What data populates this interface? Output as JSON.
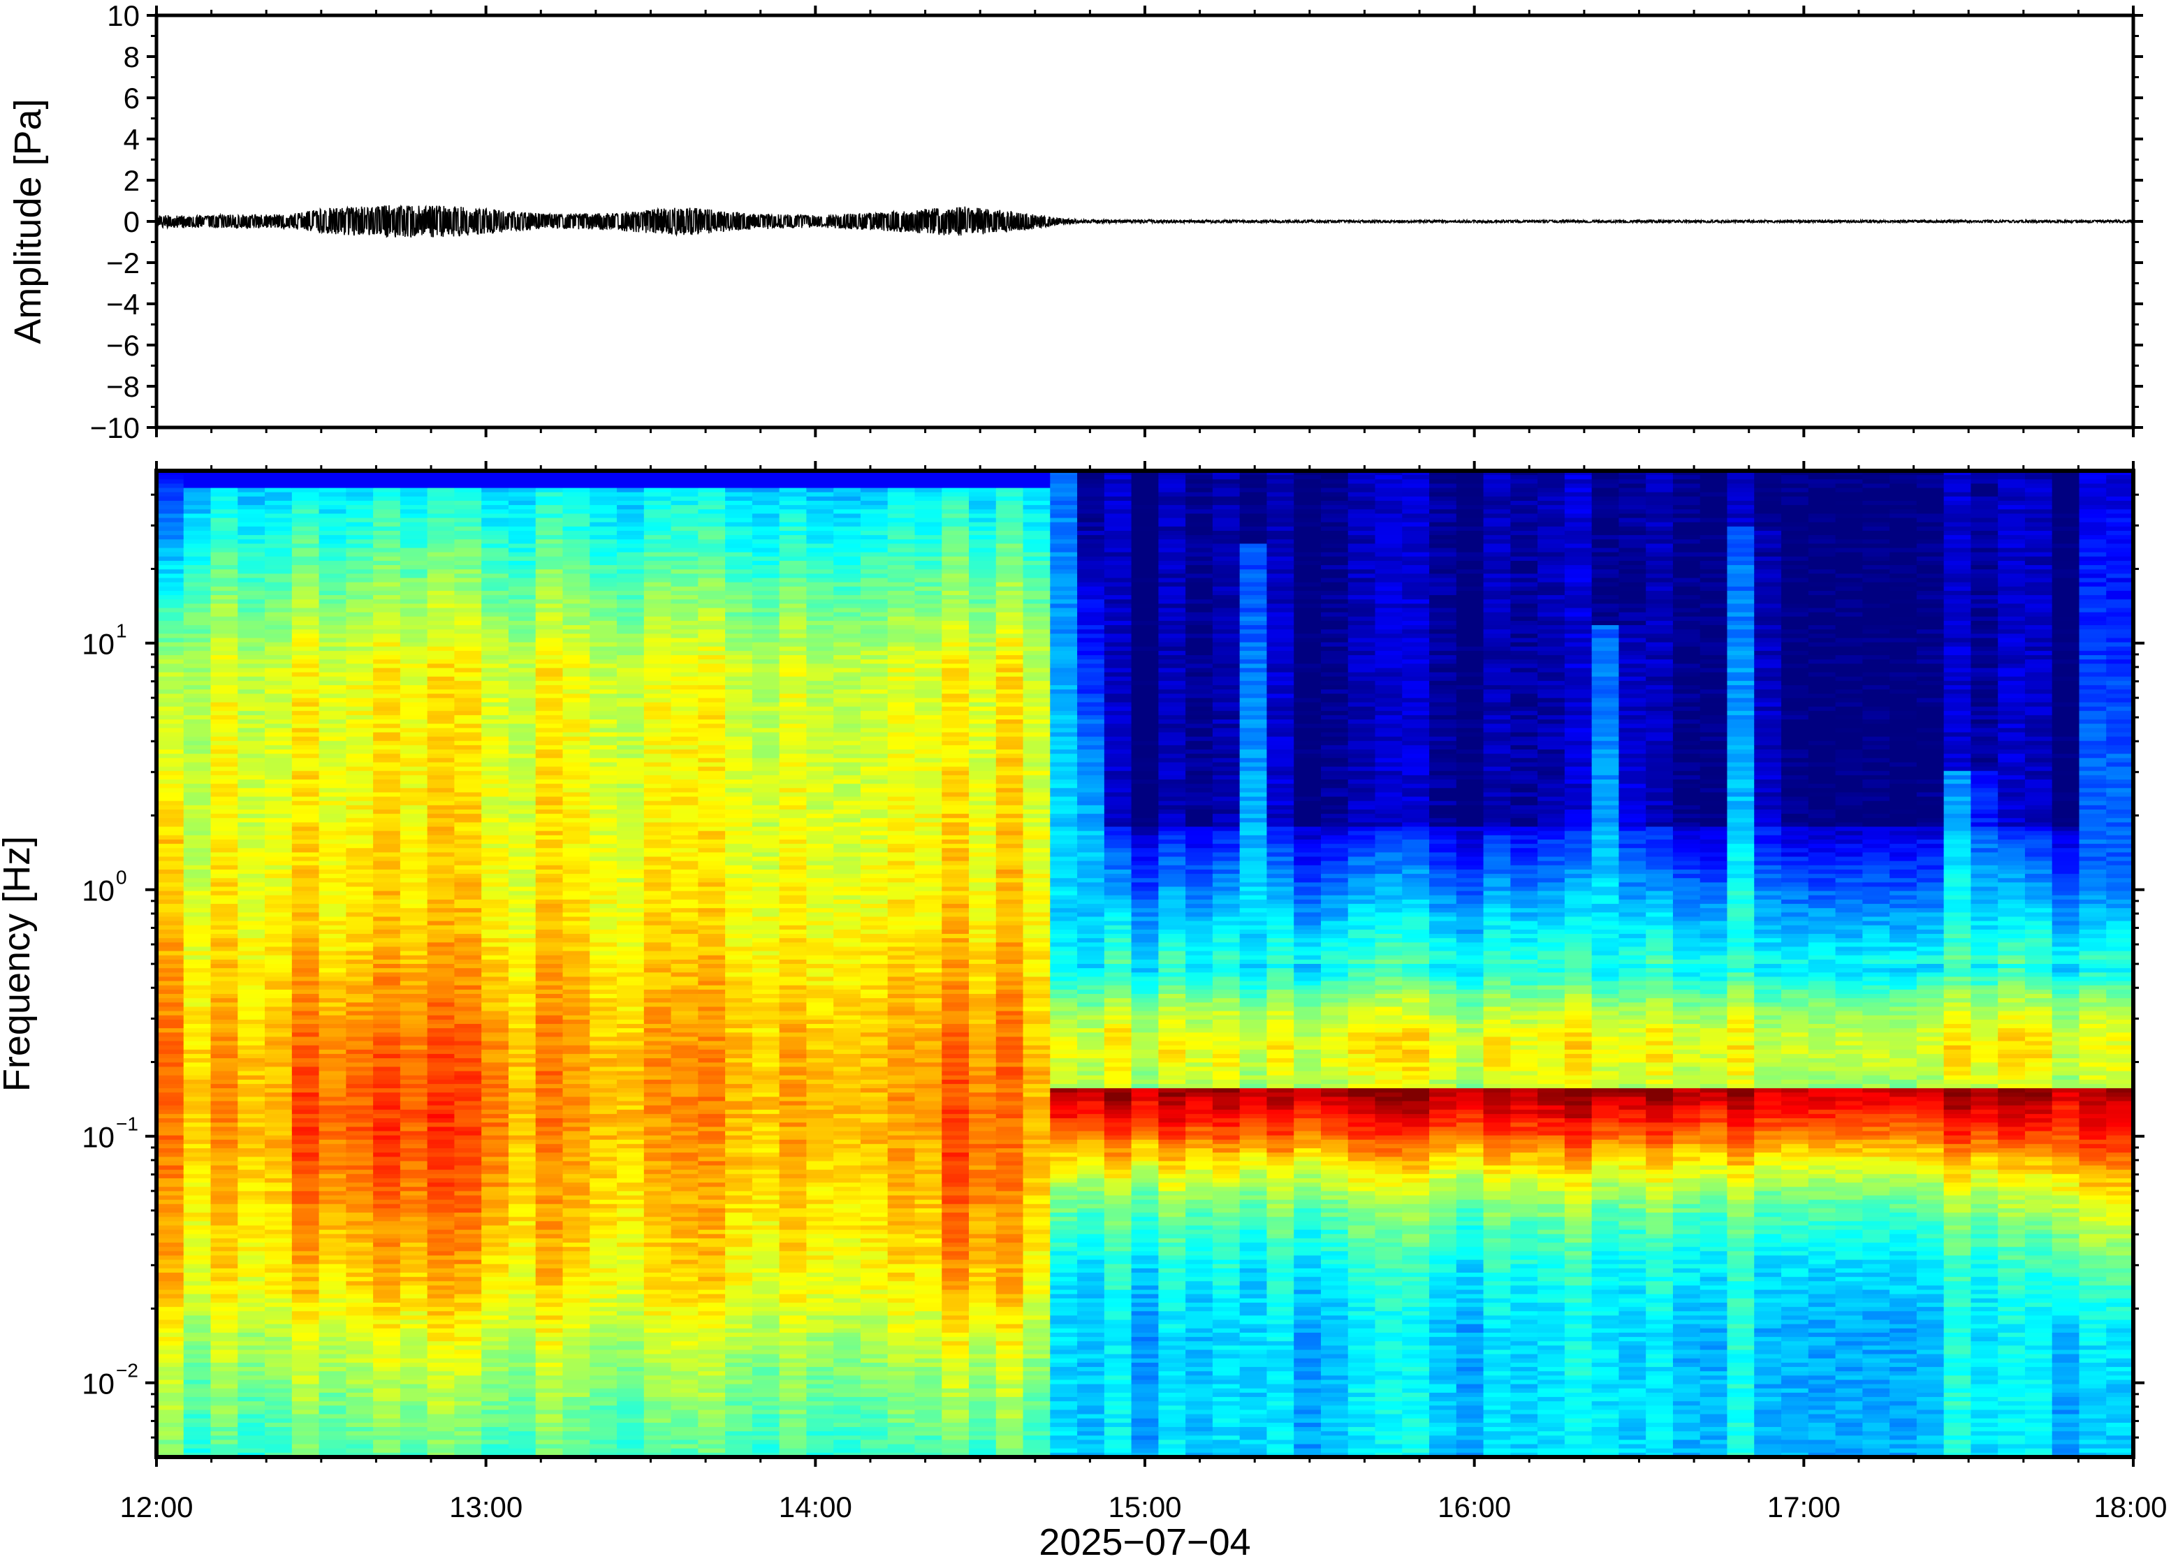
{
  "chart_data": [
    {
      "type": "line",
      "panel": "waveform",
      "ylabel": "Amplitude [Pa]",
      "ylim": [
        -10,
        10
      ],
      "yticks": [
        10,
        8,
        6,
        4,
        2,
        0,
        -2,
        -4,
        -6,
        -8,
        -10
      ],
      "ytick_labels": [
        "10",
        "8",
        "6",
        "4",
        "2",
        "0",
        "−2",
        "−4",
        "−6",
        "−8",
        "−10"
      ],
      "x_range": [
        "12:00",
        "18:00"
      ],
      "grid": false,
      "envelope": {
        "x_hours": [
          12.0,
          12.4,
          12.5,
          12.7,
          12.9,
          13.2,
          13.4,
          13.6,
          13.8,
          14.0,
          14.2,
          14.45,
          14.6,
          14.75,
          14.8,
          15.5,
          16.5,
          17.5,
          18.0
        ],
        "amplitude": [
          0.3,
          0.35,
          0.6,
          0.8,
          0.75,
          0.35,
          0.45,
          0.7,
          0.4,
          0.3,
          0.45,
          0.75,
          0.5,
          0.15,
          0.08,
          0.06,
          0.06,
          0.06,
          0.06
        ]
      }
    },
    {
      "type": "heatmap",
      "panel": "spectrogram",
      "ylabel": "Frequency [Hz]",
      "yscale": "log",
      "ylim": [
        0.005,
        50
      ],
      "yticks": [
        0.01,
        0.1,
        1,
        10
      ],
      "ytick_labels": [
        {
          "base": "10",
          "exp": "−2"
        },
        {
          "base": "10",
          "exp": "−1"
        },
        {
          "base": "10",
          "exp": "0"
        },
        {
          "base": "10",
          "exp": "1"
        }
      ],
      "xlabel": "2025−07−04",
      "xticks": [
        "12:00",
        "13:00",
        "14:00",
        "15:00",
        "16:00",
        "17:00",
        "18:00"
      ],
      "colormap": "jet",
      "colors": {
        "low": "#00007f",
        "mid": "#7fff7f",
        "high": "#ff7f00"
      },
      "regimes": [
        {
          "start": "12:00",
          "end": "14:43",
          "description_level": "broadband energy high",
          "peak_band_hz": [
            0.05,
            0.3
          ]
        },
        {
          "start": "14:43",
          "end": "18:00",
          "description_level": "energy confined below 1 Hz",
          "peak_band_hz": [
            0.15,
            0.3
          ]
        }
      ],
      "bursts": [
        {
          "time": "15:20",
          "fmax_hz": 25
        },
        {
          "time": "16:25",
          "fmax_hz": 12
        },
        {
          "time": "16:50",
          "fmax_hz": 30
        },
        {
          "time": "17:30",
          "fmax_hz": 3
        }
      ]
    }
  ]
}
